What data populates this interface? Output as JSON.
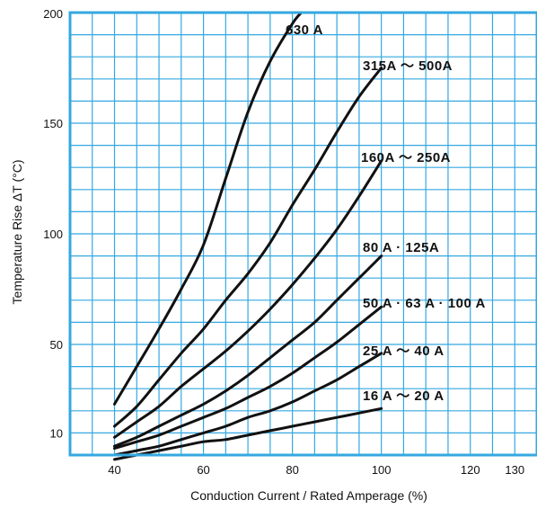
{
  "chart_data": {
    "type": "line",
    "title": "",
    "xlabel": "Conduction Current / Rated Amperage (%)",
    "ylabel": "Temperature Rise ΔT (°C)",
    "xlim": [
      30,
      135
    ],
    "ylim": [
      0,
      200
    ],
    "x_ticks": [
      40,
      60,
      80,
      100,
      120,
      130
    ],
    "y_ticks": [
      10,
      50,
      100,
      150,
      200
    ],
    "x_tick_labels": [
      "40",
      "60",
      "80",
      "100",
      "120",
      "130"
    ],
    "y_tick_labels": [
      "10",
      "50",
      "100",
      "150",
      "200"
    ],
    "grid": true,
    "colors": {
      "grid": "#35a8e0",
      "plot_border": "#35a8e0",
      "curve": "#111111",
      "background": "#ffffff"
    },
    "series": [
      {
        "name": "630 A",
        "points": [
          [
            40,
            23
          ],
          [
            45,
            40
          ],
          [
            50,
            57
          ],
          [
            55,
            75
          ],
          [
            60,
            95
          ],
          [
            65,
            125
          ],
          [
            70,
            155
          ],
          [
            75,
            178
          ],
          [
            80,
            195
          ],
          [
            82,
            200
          ]
        ]
      },
      {
        "name": "315A ～ 500A",
        "points": [
          [
            40,
            13
          ],
          [
            45,
            22
          ],
          [
            50,
            34
          ],
          [
            55,
            46
          ],
          [
            60,
            57
          ],
          [
            65,
            70
          ],
          [
            70,
            82
          ],
          [
            75,
            96
          ],
          [
            80,
            113
          ],
          [
            85,
            129
          ],
          [
            90,
            146
          ],
          [
            95,
            162
          ],
          [
            100,
            175
          ]
        ]
      },
      {
        "name": "160A ～ 250A",
        "points": [
          [
            40,
            8
          ],
          [
            45,
            15
          ],
          [
            50,
            22
          ],
          [
            55,
            31
          ],
          [
            60,
            39
          ],
          [
            65,
            47
          ],
          [
            70,
            56
          ],
          [
            75,
            66
          ],
          [
            80,
            77
          ],
          [
            85,
            89
          ],
          [
            90,
            102
          ],
          [
            95,
            117
          ],
          [
            100,
            133
          ]
        ]
      },
      {
        "name": "80 A · 125A",
        "points": [
          [
            40,
            4
          ],
          [
            45,
            8
          ],
          [
            50,
            13
          ],
          [
            55,
            18
          ],
          [
            60,
            23
          ],
          [
            65,
            29
          ],
          [
            70,
            36
          ],
          [
            75,
            44
          ],
          [
            80,
            52
          ],
          [
            85,
            60
          ],
          [
            90,
            70
          ],
          [
            95,
            80
          ],
          [
            100,
            90
          ]
        ]
      },
      {
        "name": "50 A · 63 A · 100 A",
        "points": [
          [
            40,
            3
          ],
          [
            45,
            6
          ],
          [
            50,
            9
          ],
          [
            55,
            13
          ],
          [
            60,
            17
          ],
          [
            65,
            21
          ],
          [
            70,
            26
          ],
          [
            75,
            31
          ],
          [
            80,
            37
          ],
          [
            85,
            44
          ],
          [
            90,
            51
          ],
          [
            95,
            59
          ],
          [
            100,
            67
          ]
        ]
      },
      {
        "name": "25 A ～ 40 A",
        "points": [
          [
            40,
            0
          ],
          [
            45,
            2
          ],
          [
            50,
            4
          ],
          [
            55,
            7
          ],
          [
            60,
            10
          ],
          [
            65,
            13
          ],
          [
            70,
            17
          ],
          [
            75,
            20
          ],
          [
            80,
            24
          ],
          [
            85,
            29
          ],
          [
            90,
            34
          ],
          [
            95,
            40
          ],
          [
            100,
            46
          ]
        ]
      },
      {
        "name": "16 A ～ 20 A",
        "points": [
          [
            40,
            -2
          ],
          [
            45,
            0
          ],
          [
            50,
            2
          ],
          [
            55,
            4
          ],
          [
            60,
            6
          ],
          [
            65,
            7
          ],
          [
            70,
            9
          ],
          [
            75,
            11
          ],
          [
            80,
            13
          ],
          [
            85,
            15
          ],
          [
            90,
            17
          ],
          [
            95,
            19
          ],
          [
            100,
            21
          ]
        ]
      }
    ]
  }
}
